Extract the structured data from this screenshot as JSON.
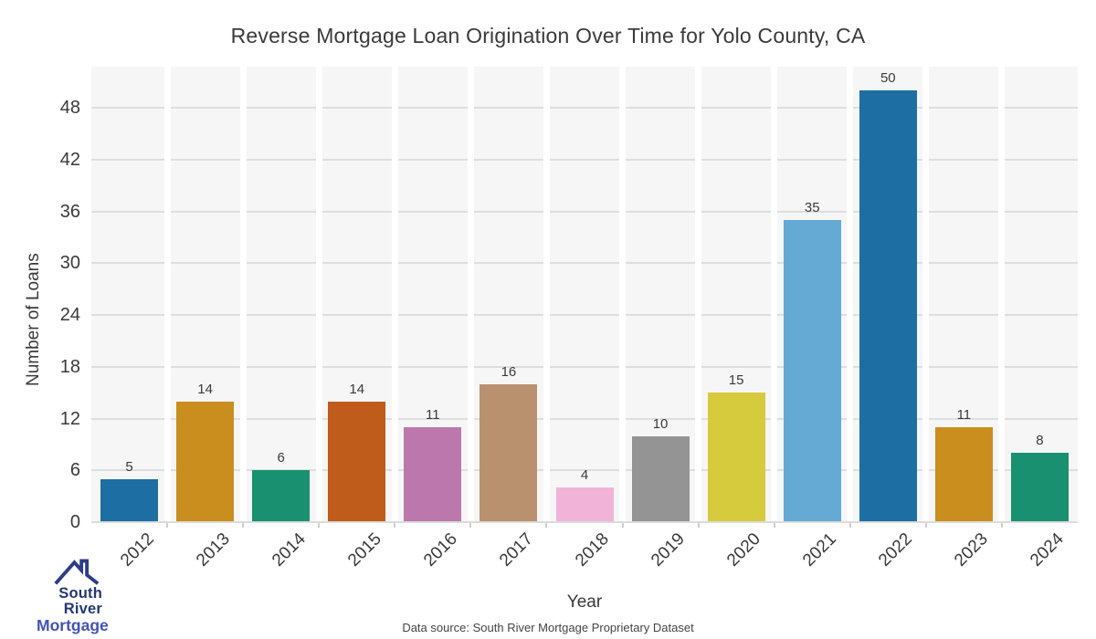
{
  "chart_data": {
    "type": "bar",
    "title": "Reverse Mortgage Loan Origination Over Time for Yolo County, CA",
    "xlabel": "Year",
    "ylabel": "Number of Loans",
    "categories": [
      "2012",
      "2013",
      "2014",
      "2015",
      "2016",
      "2017",
      "2018",
      "2019",
      "2020",
      "2021",
      "2022",
      "2023",
      "2024"
    ],
    "values": [
      5,
      14,
      6,
      14,
      11,
      16,
      4,
      10,
      15,
      35,
      50,
      11,
      8
    ],
    "bar_colors": [
      "#1d6ea3",
      "#c98e1d",
      "#199170",
      "#bf5b1b",
      "#bc77ad",
      "#b9916f",
      "#f2b3d9",
      "#949494",
      "#d6ca3d",
      "#65a9d5",
      "#1d6ea3",
      "#c98e1d",
      "#199170"
    ],
    "yticks": [
      0,
      6,
      12,
      18,
      24,
      30,
      36,
      42,
      48
    ],
    "ylim": [
      0,
      52.8
    ],
    "grid": "horizontal-only",
    "legend": "none",
    "plot_background": "#f6f6f6",
    "gridline_color": "#dedede"
  },
  "footer": {
    "source_note": "Data source: South River Mortgage Proprietary Dataset"
  },
  "logo": {
    "line1": "South River",
    "line2": "Mortgage",
    "roof_color": "#2c3c85",
    "line1_color": "#24386f",
    "line2_color": "#4353b5"
  }
}
